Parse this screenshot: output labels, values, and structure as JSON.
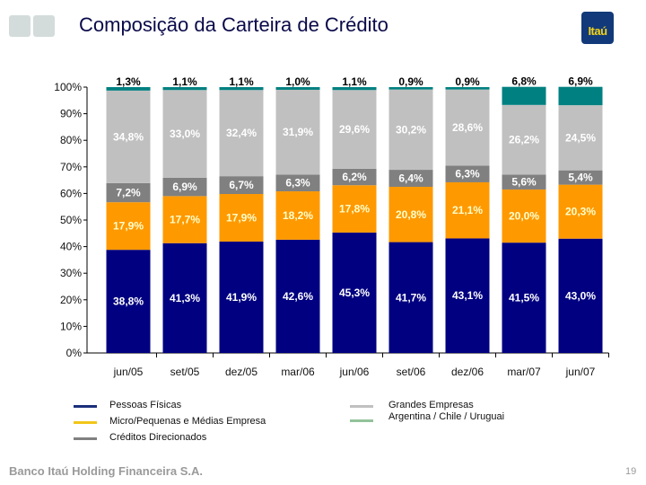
{
  "slide": {
    "title": "Composição da Carteira de Crédito",
    "logo_text": "Itaú",
    "footer_company": "Banco Itaú Holding Financeira S.A.",
    "page_number": "19"
  },
  "legend": {
    "items": [
      {
        "label": "Pessoas Físicas",
        "color": "#1a2f7a"
      },
      {
        "label": "Micro/Pequenas e Médias Empresa",
        "color": "#f2c619"
      },
      {
        "label": "Créditos Direcionados",
        "color": "#808080"
      },
      {
        "label": "Grandes Empresas",
        "color": "#c0c0c0"
      },
      {
        "label": "Argentina / Chile / Uruguai",
        "color": "#93c29a"
      }
    ]
  },
  "chart_data": {
    "type": "bar",
    "stacked": true,
    "title": "Composição da Carteira de Crédito",
    "xlabel": "",
    "ylabel": "",
    "ylim": [
      0,
      100
    ],
    "yticks": [
      "0%",
      "10%",
      "20%",
      "30%",
      "40%",
      "50%",
      "60%",
      "70%",
      "80%",
      "90%",
      "100%"
    ],
    "categories": [
      "jun/05",
      "set/05",
      "dez/05",
      "mar/06",
      "jun/06",
      "set/06",
      "dez/06",
      "mar/07",
      "jun/07"
    ],
    "series": [
      {
        "name": "Pessoas Físicas",
        "color": "#000080",
        "label_color": "#ffffff",
        "values": [
          38.8,
          41.3,
          41.9,
          42.6,
          45.3,
          41.7,
          43.1,
          41.5,
          43.0
        ],
        "labels": [
          "38,8%",
          "41,3%",
          "41,9%",
          "42,6%",
          "45,3%",
          "41,7%",
          "43,1%",
          "41,5%",
          "43,0%"
        ]
      },
      {
        "name": "Micro/Pequenas e Médias Empresa",
        "color": "#ff9900",
        "label_color": "#ffffcc",
        "values": [
          17.9,
          17.7,
          17.9,
          18.2,
          17.8,
          20.8,
          21.1,
          20.0,
          20.3
        ],
        "labels": [
          "17,9%",
          "17,7%",
          "17,9%",
          "18,2%",
          "17,8%",
          "20,8%",
          "21,1%",
          "20,0%",
          "20,3%"
        ]
      },
      {
        "name": "Créditos Direcionados",
        "color": "#808080",
        "label_color": "#ffffff",
        "values": [
          7.2,
          6.9,
          6.7,
          6.3,
          6.2,
          6.4,
          6.3,
          5.6,
          5.4
        ],
        "labels": [
          "7,2%",
          "6,9%",
          "6,7%",
          "6,3%",
          "6,2%",
          "6,4%",
          "6,3%",
          "5,6%",
          "5,4%"
        ]
      },
      {
        "name": "Grandes Empresas",
        "color": "#c0c0c0",
        "label_color": "#ffffff",
        "values": [
          34.8,
          33.0,
          32.4,
          31.9,
          29.6,
          30.2,
          28.6,
          26.2,
          24.5
        ],
        "labels": [
          "34,8%",
          "33,0%",
          "32,4%",
          "31,9%",
          "29,6%",
          "30,2%",
          "28,6%",
          "26,2%",
          "24,5%"
        ]
      },
      {
        "name": "Argentina / Chile / Uruguai",
        "color": "#008080",
        "label_color": "#000000",
        "values": [
          1.3,
          1.1,
          1.1,
          1.0,
          1.1,
          0.9,
          0.9,
          6.8,
          6.9
        ],
        "labels": [
          "1,3%",
          "1,1%",
          "1,1%",
          "1,0%",
          "1,1%",
          "0,9%",
          "0,9%",
          "6,8%",
          "6,9%"
        ]
      }
    ],
    "grid": false,
    "legend_position": "bottom"
  }
}
